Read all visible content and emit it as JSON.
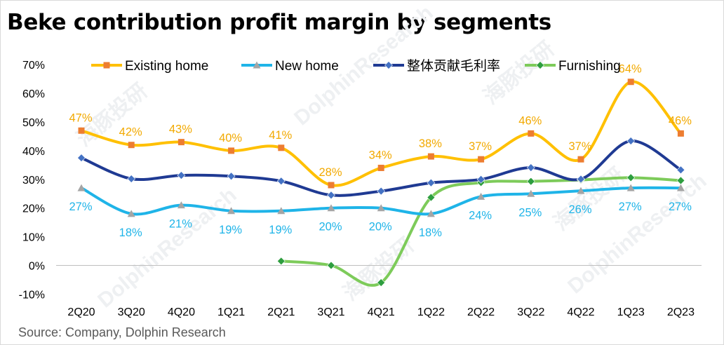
{
  "title": "Beke contribution profit margin by segments",
  "source": "Source: Company, Dolphin Research",
  "watermarks": [
    "海豚投研",
    "DolphinResearch"
  ],
  "colors": {
    "existing_home": "#FFC000",
    "new_home": "#1FB4E8",
    "overall": "#1F3A93",
    "furnishing": "#7DCB5A",
    "existing_home_marker": "#ED7D31",
    "new_home_marker": "#A5A5A5",
    "overall_marker": "#4472C4",
    "furnishing_marker": "#2E9E3F",
    "existing_label": "#F2A900",
    "new_label": "#1FB4E8"
  },
  "chart_data": {
    "type": "line",
    "title": "Beke contribution profit margin by segments",
    "xlabel": "",
    "ylabel": "",
    "ylim": [
      -10,
      70
    ],
    "yticks": [
      -10,
      0,
      10,
      20,
      30,
      40,
      50,
      60,
      70
    ],
    "ytick_labels": [
      "-10%",
      "0%",
      "10%",
      "20%",
      "30%",
      "40%",
      "50%",
      "60%",
      "70%"
    ],
    "grid": false,
    "legend_position": "top",
    "categories": [
      "2Q20",
      "3Q20",
      "4Q20",
      "1Q21",
      "2Q21",
      "3Q21",
      "4Q21",
      "1Q22",
      "2Q22",
      "3Q22",
      "4Q22",
      "1Q23",
      "2Q23"
    ],
    "series": [
      {
        "name": "Existing home",
        "values": [
          47,
          42,
          43,
          40,
          41,
          28,
          34,
          38,
          37,
          46,
          37,
          64,
          46
        ],
        "data_labels": [
          "47%",
          "42%",
          "43%",
          "40%",
          "41%",
          "28%",
          "34%",
          "38%",
          "37%",
          "46%",
          "37%",
          "64%",
          "46%"
        ],
        "label_position": "above"
      },
      {
        "name": "New home",
        "values": [
          27,
          18,
          21,
          19,
          19,
          20,
          20,
          18,
          24,
          25,
          26,
          27,
          27
        ],
        "data_labels": [
          "27%",
          "18%",
          "21%",
          "19%",
          "19%",
          "20%",
          "20%",
          "18%",
          "24%",
          "25%",
          "26%",
          "27%",
          "27%"
        ],
        "label_position": "below"
      },
      {
        "name": "整体贡献毛利率",
        "values": [
          37.5,
          30.2,
          31.4,
          31.1,
          29.4,
          24.5,
          25.9,
          28.8,
          30,
          34.1,
          30.1,
          43.4,
          33.3
        ],
        "data_labels": null
      },
      {
        "name": "Furnishing",
        "values": [
          null,
          null,
          null,
          null,
          1.5,
          0,
          -6,
          23.7,
          28.9,
          29.3,
          29.8,
          30.6,
          29.6
        ],
        "data_labels": null
      }
    ]
  }
}
